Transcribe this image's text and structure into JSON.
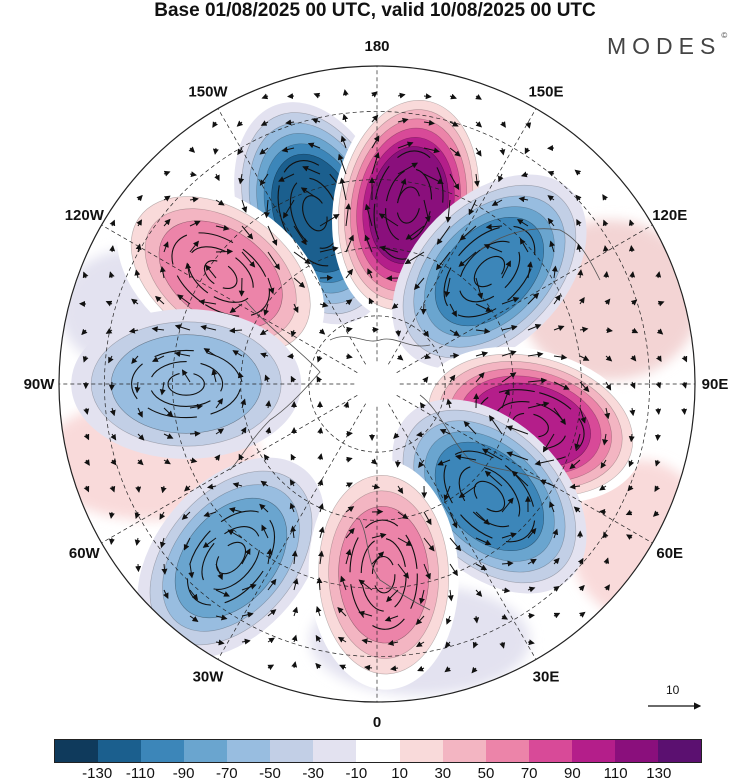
{
  "title": "Base 01/08/2025 00 UTC, valid 10/08/2025 00 UTC",
  "brand": "MODES",
  "brand_mark": "©",
  "longitude_labels": [
    "180",
    "150E",
    "120E",
    "90E",
    "60E",
    "30E",
    "0",
    "30W",
    "60W",
    "90W",
    "120W",
    "150W"
  ],
  "colorbar": {
    "colors": [
      "#0f3a5c",
      "#1b5f8e",
      "#3c86b9",
      "#6aa5cf",
      "#98bde0",
      "#c2cfe6",
      "#e3e2f0",
      "#ffffff",
      "#f9dada",
      "#f3b5c2",
      "#ec84a9",
      "#d84a98",
      "#b41e8a",
      "#8a0f7c",
      "#5b1070"
    ],
    "tick_labels": [
      "-130",
      "-110",
      "-90",
      "-70",
      "-50",
      "-30",
      "-10",
      "10",
      "30",
      "50",
      "70",
      "90",
      "110",
      "130"
    ]
  },
  "reference_vector": {
    "value": "10"
  },
  "anomaly_centres": [
    {
      "name": "low-150w-180",
      "lon": -160,
      "lat": 50,
      "value": -110
    },
    {
      "name": "high-180",
      "lon": 170,
      "lat": 50,
      "value": 130
    },
    {
      "name": "low-east-siberia",
      "lon": 135,
      "lat": 55,
      "value": -90
    },
    {
      "name": "high-120w",
      "lon": -125,
      "lat": 48,
      "value": 70
    },
    {
      "name": "high-ural",
      "lon": 75,
      "lat": 55,
      "value": 110
    },
    {
      "name": "low-russia",
      "lon": 45,
      "lat": 55,
      "value": -90
    },
    {
      "name": "low-atlantic",
      "lon": -40,
      "lat": 40,
      "value": -70
    },
    {
      "name": "high-europe",
      "lon": 2,
      "lat": 48,
      "value": 70
    },
    {
      "name": "low-hudson",
      "lon": -90,
      "lat": 48,
      "value": -50
    }
  ]
}
